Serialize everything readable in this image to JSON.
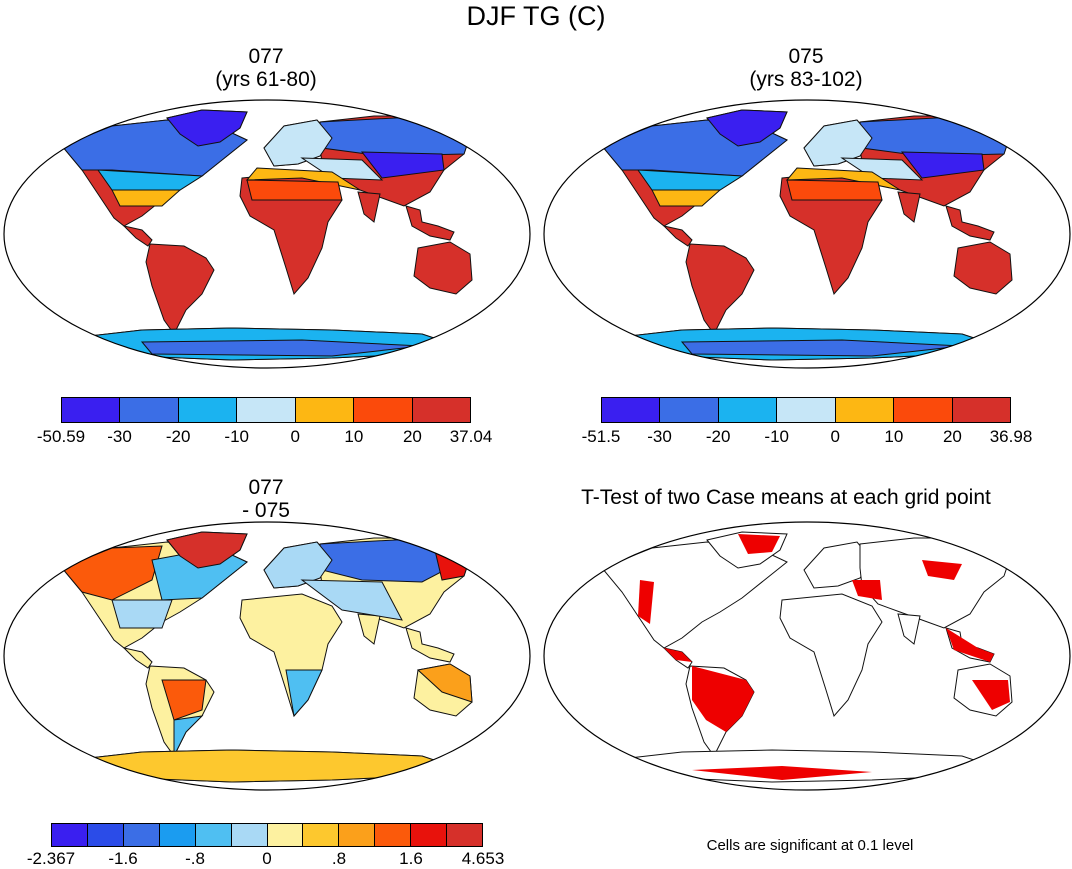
{
  "title": "DJF TG (C)",
  "panels": [
    {
      "id": "p1",
      "title_line1": "077",
      "title_line2": "(yrs 61-80)",
      "colorbar": {
        "colors": [
          "#3a1ff0",
          "#3b6ee6",
          "#1bb3f0",
          "#c6e6f7",
          "#fdb713",
          "#fb4a0b",
          "#d6302a"
        ],
        "labels": [
          "-50.59",
          "-30",
          "-20",
          "-10",
          "0",
          "10",
          "20",
          "37.04"
        ]
      }
    },
    {
      "id": "p2",
      "title_line1": "075",
      "title_line2": "(yrs 83-102)",
      "colorbar": {
        "colors": [
          "#3a1ff0",
          "#3b6ee6",
          "#1bb3f0",
          "#c6e6f7",
          "#fdb713",
          "#fb4a0b",
          "#d6302a"
        ],
        "labels": [
          "-51.5",
          "-30",
          "-20",
          "-10",
          "0",
          "10",
          "20",
          "36.98"
        ]
      }
    },
    {
      "id": "p3",
      "title_line1": "077",
      "title_line2": "- 075",
      "colorbar": {
        "colors": [
          "#3a1ff0",
          "#2b4ce8",
          "#3b6ee6",
          "#1b9cf0",
          "#4fbff2",
          "#a9d9f5",
          "#fdf1a0",
          "#fdc82e",
          "#fba01b",
          "#fb5a0b",
          "#e8120c",
          "#d6302a"
        ],
        "labels": [
          "-2.367",
          "-1.6",
          "-.8",
          "0",
          ".8",
          "1.6",
          "4.653"
        ],
        "label_positions": [
          0,
          2,
          4,
          6,
          8,
          10,
          12
        ]
      }
    },
    {
      "id": "p4",
      "title_line1": "T-Test of two Case means at each grid point",
      "note": "Cells are significant at 0.1 level",
      "sig_color": "#ee0000"
    }
  ]
}
